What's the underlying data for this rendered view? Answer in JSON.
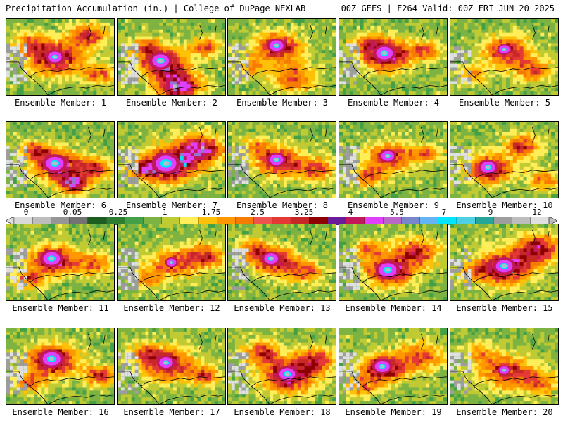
{
  "header": {
    "title": "Precipitation Accumulation (in.) | College of DuPage NEXLAB",
    "run_info": "00Z GEFS | F264 Valid: 00Z FRI JUN 20 2025"
  },
  "colorbar": {
    "tick_labels": [
      "0",
      "0.05",
      "0.25",
      "1",
      "1.75",
      "2.5",
      "3.25",
      "4",
      "5.5",
      "7",
      "9",
      "12"
    ],
    "colors": [
      "#d9d9d9",
      "#bdbdbd",
      "#969696",
      "#737373",
      "#1b5e20",
      "#2e7d32",
      "#43a047",
      "#7cb342",
      "#c0ca33",
      "#ffee58",
      "#ffc107",
      "#ff9800",
      "#f57c00",
      "#ef5350",
      "#e53935",
      "#c62828",
      "#8e0000",
      "#6a1b9a",
      "#c2185b",
      "#e040fb",
      "#ba68c8",
      "#7986cb",
      "#64b5f6",
      "#00e5ff",
      "#4dd0e1",
      "#26a69a",
      "#9e9e9e",
      "#bdbdbd",
      "#e0e0e0"
    ]
  },
  "members": [
    {
      "label": "Ensemble Member: 1",
      "heat": [
        [
          0.45,
          0.5,
          0.35,
          0.8
        ],
        [
          0.2,
          0.3,
          0.25,
          0.4
        ],
        [
          0.75,
          0.2,
          0.25,
          0.6
        ],
        [
          0.85,
          0.7,
          0.2,
          0.5
        ]
      ],
      "core": 0.55
    },
    {
      "label": "Ensemble Member: 2",
      "heat": [
        [
          0.4,
          0.55,
          0.3,
          0.8
        ],
        [
          0.55,
          0.85,
          0.3,
          0.9
        ],
        [
          0.25,
          0.35,
          0.2,
          0.5
        ],
        [
          0.8,
          0.35,
          0.2,
          0.5
        ]
      ],
      "core": 0.7
    },
    {
      "label": "Ensemble Member: 3",
      "heat": [
        [
          0.45,
          0.35,
          0.3,
          0.75
        ],
        [
          0.6,
          0.75,
          0.3,
          0.5
        ],
        [
          0.2,
          0.6,
          0.2,
          0.4
        ]
      ],
      "core": 0.55
    },
    {
      "label": "Ensemble Member: 4",
      "heat": [
        [
          0.42,
          0.45,
          0.33,
          0.85
        ],
        [
          0.25,
          0.3,
          0.2,
          0.4
        ],
        [
          0.8,
          0.4,
          0.2,
          0.5
        ]
      ],
      "core": 0.7
    },
    {
      "label": "Ensemble Member: 5",
      "heat": [
        [
          0.5,
          0.4,
          0.3,
          0.65
        ],
        [
          0.75,
          0.65,
          0.25,
          0.5
        ],
        [
          0.2,
          0.7,
          0.2,
          0.35
        ]
      ],
      "core": 0.4
    },
    {
      "label": "Ensemble Member: 6",
      "heat": [
        [
          0.45,
          0.55,
          0.3,
          0.85
        ],
        [
          0.6,
          0.8,
          0.2,
          0.8
        ],
        [
          0.25,
          0.35,
          0.2,
          0.5
        ],
        [
          0.8,
          0.6,
          0.25,
          0.55
        ]
      ],
      "core": 0.75
    },
    {
      "label": "Ensemble Member: 7",
      "heat": [
        [
          0.45,
          0.55,
          0.35,
          0.95
        ],
        [
          0.75,
          0.35,
          0.3,
          0.85
        ],
        [
          0.2,
          0.6,
          0.2,
          0.5
        ]
      ],
      "core": 0.9
    },
    {
      "label": "Ensemble Member: 8",
      "heat": [
        [
          0.45,
          0.5,
          0.3,
          0.7
        ],
        [
          0.8,
          0.6,
          0.25,
          0.55
        ],
        [
          0.25,
          0.3,
          0.2,
          0.35
        ]
      ],
      "core": 0.55
    },
    {
      "label": "Ensemble Member: 9",
      "heat": [
        [
          0.45,
          0.45,
          0.3,
          0.65
        ],
        [
          0.25,
          0.7,
          0.2,
          0.5
        ],
        [
          0.8,
          0.4,
          0.2,
          0.45
        ]
      ],
      "core": 0.5
    },
    {
      "label": "Ensemble Member: 10",
      "heat": [
        [
          0.35,
          0.6,
          0.3,
          0.75
        ],
        [
          0.65,
          0.3,
          0.25,
          0.55
        ],
        [
          0.85,
          0.75,
          0.2,
          0.45
        ]
      ],
      "core": 0.6
    },
    {
      "label": "Ensemble Member: 11",
      "heat": [
        [
          0.42,
          0.45,
          0.3,
          0.8
        ],
        [
          0.2,
          0.7,
          0.2,
          0.5
        ],
        [
          0.8,
          0.5,
          0.25,
          0.45
        ]
      ],
      "core": 0.7
    },
    {
      "label": "Ensemble Member: 12",
      "heat": [
        [
          0.5,
          0.5,
          0.3,
          0.55
        ],
        [
          0.8,
          0.4,
          0.25,
          0.6
        ],
        [
          0.25,
          0.7,
          0.2,
          0.4
        ]
      ],
      "core": 0.35
    },
    {
      "label": "Ensemble Member: 13",
      "heat": [
        [
          0.4,
          0.45,
          0.3,
          0.7
        ],
        [
          0.7,
          0.6,
          0.25,
          0.45
        ],
        [
          0.2,
          0.3,
          0.2,
          0.4
        ]
      ],
      "core": 0.55
    },
    {
      "label": "Ensemble Member: 14",
      "heat": [
        [
          0.45,
          0.6,
          0.3,
          0.85
        ],
        [
          0.7,
          0.35,
          0.3,
          0.6
        ],
        [
          0.25,
          0.3,
          0.2,
          0.45
        ]
      ],
      "core": 0.75
    },
    {
      "label": "Ensemble Member: 15",
      "heat": [
        [
          0.5,
          0.55,
          0.35,
          0.85
        ],
        [
          0.8,
          0.3,
          0.3,
          0.7
        ],
        [
          0.2,
          0.6,
          0.2,
          0.4
        ]
      ],
      "core": 0.7
    },
    {
      "label": "Ensemble Member: 16",
      "heat": [
        [
          0.42,
          0.4,
          0.33,
          0.85
        ],
        [
          0.85,
          0.6,
          0.2,
          0.6
        ],
        [
          0.2,
          0.7,
          0.2,
          0.45
        ]
      ],
      "core": 0.75
    },
    {
      "label": "Ensemble Member: 17",
      "heat": [
        [
          0.45,
          0.45,
          0.35,
          0.7
        ],
        [
          0.8,
          0.6,
          0.2,
          0.5
        ],
        [
          0.25,
          0.3,
          0.2,
          0.45
        ]
      ],
      "core": 0.55
    },
    {
      "label": "Ensemble Member: 18",
      "heat": [
        [
          0.55,
          0.6,
          0.35,
          0.8
        ],
        [
          0.3,
          0.3,
          0.25,
          0.55
        ],
        [
          0.8,
          0.4,
          0.25,
          0.6
        ]
      ],
      "core": 0.65
    },
    {
      "label": "Ensemble Member: 19",
      "heat": [
        [
          0.4,
          0.5,
          0.3,
          0.8
        ],
        [
          0.75,
          0.35,
          0.3,
          0.5
        ],
        [
          0.2,
          0.75,
          0.2,
          0.45
        ]
      ],
      "core": 0.6
    },
    {
      "label": "Ensemble Member: 20",
      "heat": [
        [
          0.5,
          0.55,
          0.35,
          0.6
        ],
        [
          0.25,
          0.3,
          0.2,
          0.35
        ],
        [
          0.8,
          0.7,
          0.25,
          0.45
        ]
      ],
      "core": 0.35
    }
  ]
}
